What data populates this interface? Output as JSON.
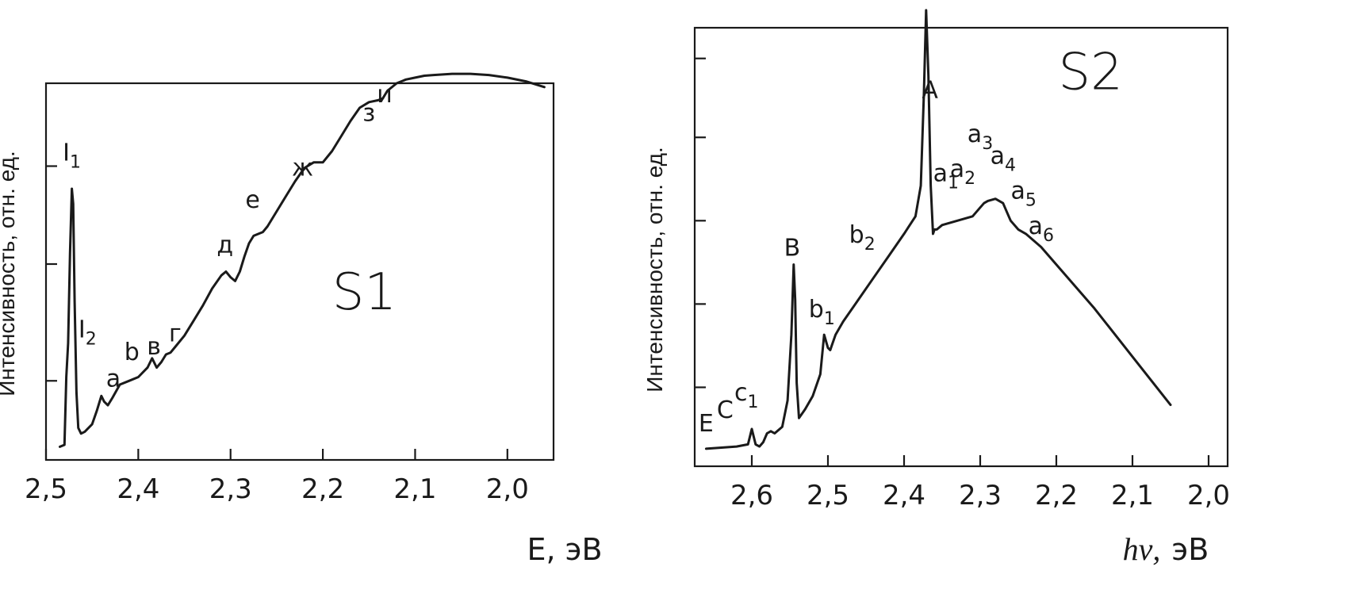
{
  "chart_data": [
    {
      "type": "line",
      "panel_label": "S1",
      "xlabel": "E,  эВ",
      "ylabel": "Интенсивность, отн. ед.",
      "xlim": [
        2.5,
        1.95
      ],
      "x_reversed": true,
      "x_ticks": [
        2.5,
        2.4,
        2.3,
        2.2,
        2.1,
        2.0
      ],
      "x_tick_labels": [
        "2,5",
        "2,4",
        "2,3",
        "2,2",
        "2,1",
        "2,0"
      ],
      "ylim": [
        0,
        10
      ],
      "y_ticks": [
        2.1,
        5.2,
        7.8
      ],
      "grid": false,
      "series": [
        {
          "x": [
            2.485,
            2.48,
            2.478,
            2.476,
            2.474,
            2.472,
            2.4705,
            2.469,
            2.467,
            2.465,
            2.462,
            2.458,
            2.45,
            2.445,
            2.44,
            2.437,
            2.433,
            2.428,
            2.42,
            2.41,
            2.4,
            2.39,
            2.385,
            2.38,
            2.375,
            2.37,
            2.365,
            2.36,
            2.35,
            2.34,
            2.33,
            2.32,
            2.31,
            2.305,
            2.3,
            2.295,
            2.29,
            2.285,
            2.28,
            2.275,
            2.27,
            2.265,
            2.26,
            2.25,
            2.24,
            2.23,
            2.22,
            2.21,
            2.2,
            2.19,
            2.18,
            2.17,
            2.16,
            2.15,
            2.14,
            2.135,
            2.13,
            2.12,
            2.11,
            2.1,
            2.09,
            2.08,
            2.06,
            2.04,
            2.02,
            2.0,
            1.98,
            1.96
          ],
          "y": [
            0.35,
            0.4,
            2.2,
            3.1,
            5.5,
            7.2,
            6.8,
            4.2,
            1.8,
            0.85,
            0.7,
            0.75,
            0.95,
            1.3,
            1.7,
            1.55,
            1.45,
            1.65,
            2.0,
            2.1,
            2.2,
            2.45,
            2.7,
            2.45,
            2.6,
            2.8,
            2.85,
            3.0,
            3.3,
            3.7,
            4.1,
            4.55,
            4.9,
            5.0,
            4.85,
            4.75,
            5.0,
            5.4,
            5.75,
            5.95,
            6.0,
            6.05,
            6.2,
            6.6,
            7.0,
            7.4,
            7.75,
            7.9,
            7.9,
            8.2,
            8.6,
            9.0,
            9.35,
            9.5,
            9.55,
            9.6,
            9.8,
            10.0,
            10.1,
            10.15,
            10.2,
            10.22,
            10.25,
            10.25,
            10.22,
            10.15,
            10.05,
            9.9
          ]
        }
      ],
      "annotations": [
        {
          "text": "I",
          "sub": "1"
        },
        {
          "text": "I",
          "sub": "2"
        },
        {
          "text": "a"
        },
        {
          "text": "b"
        },
        {
          "text": "в"
        },
        {
          "text": "г"
        },
        {
          "text": "д"
        },
        {
          "text": "е"
        },
        {
          "text": "ж"
        },
        {
          "text": "з"
        },
        {
          "text": "и"
        }
      ]
    },
    {
      "type": "line",
      "panel_label": "S2",
      "xlabel_italic": "hν,",
      "xlabel_unit": "эВ",
      "ylabel": "Интенсивность, отн. ед.",
      "xlim": [
        2.675,
        1.975
      ],
      "x_reversed": true,
      "x_ticks": [
        2.6,
        2.5,
        2.4,
        2.3,
        2.2,
        2.1,
        2.0
      ],
      "x_tick_labels": [
        "2,6",
        "2,5",
        "2,4",
        "2,3",
        "2,2",
        "2,1",
        "2,0"
      ],
      "ylim": [
        0,
        10
      ],
      "y_ticks": [
        1.8,
        3.7,
        5.6,
        7.5,
        9.3
      ],
      "grid": false,
      "series": [
        {
          "x": [
            2.66,
            2.62,
            2.605,
            2.6,
            2.595,
            2.59,
            2.585,
            2.58,
            2.575,
            2.57,
            2.56,
            2.553,
            2.548,
            2.545,
            2.543,
            2.541,
            2.538,
            2.53,
            2.52,
            2.51,
            2.505,
            2.5,
            2.497,
            2.495,
            2.49,
            2.48,
            2.46,
            2.44,
            2.42,
            2.4,
            2.385,
            2.378,
            2.374,
            2.371,
            2.368,
            2.365,
            2.362,
            2.36,
            2.357,
            2.35,
            2.33,
            2.31,
            2.3,
            2.295,
            2.29,
            2.28,
            2.27,
            2.265,
            2.26,
            2.25,
            2.24,
            2.22,
            2.2,
            2.15,
            2.1,
            2.05
          ],
          "y": [
            0.4,
            0.45,
            0.5,
            0.85,
            0.5,
            0.45,
            0.55,
            0.75,
            0.8,
            0.75,
            0.9,
            1.5,
            3.0,
            4.6,
            3.8,
            1.9,
            1.1,
            1.3,
            1.6,
            2.1,
            3.0,
            2.7,
            2.65,
            2.75,
            3.0,
            3.3,
            3.8,
            4.3,
            4.8,
            5.3,
            5.7,
            6.4,
            8.5,
            10.4,
            8.9,
            6.4,
            5.3,
            5.4,
            5.4,
            5.5,
            5.6,
            5.7,
            5.9,
            6.0,
            6.05,
            6.1,
            6.0,
            5.8,
            5.6,
            5.4,
            5.3,
            5.0,
            4.6,
            3.6,
            2.5,
            1.4
          ]
        }
      ],
      "annotations": [
        {
          "text": "A"
        },
        {
          "text": "B"
        },
        {
          "text": "E"
        },
        {
          "text": "C"
        },
        {
          "text": "c",
          "sub": "1"
        },
        {
          "text": "b",
          "sub": "1"
        },
        {
          "text": "b",
          "sub": "2"
        },
        {
          "text": "a",
          "sub": "1"
        },
        {
          "text": "a",
          "sub": "2"
        },
        {
          "text": "a",
          "sub": "3"
        },
        {
          "text": "a",
          "sub": "4"
        },
        {
          "text": "a",
          "sub": "5"
        },
        {
          "text": "a",
          "sub": "6"
        }
      ]
    }
  ]
}
